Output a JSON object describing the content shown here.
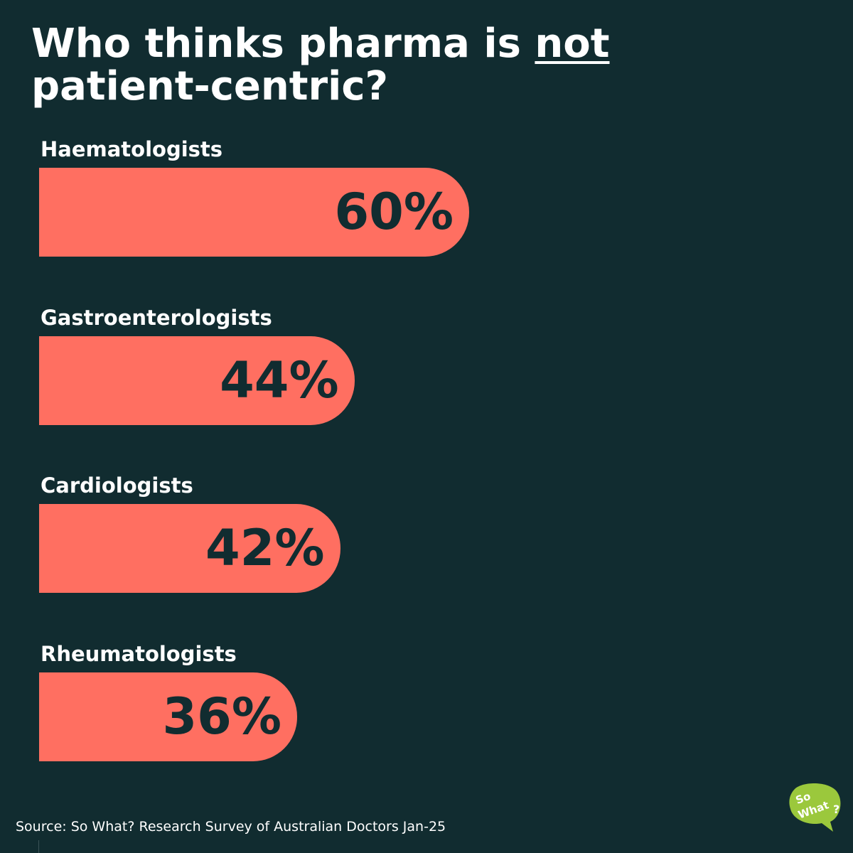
{
  "title": {
    "prefix": "Who thinks pharma is ",
    "emphasis": "not",
    "suffix": "patient-centric?"
  },
  "chart_data": {
    "type": "bar",
    "orientation": "horizontal",
    "categories": [
      "Haematologists",
      "Gastroenterologists",
      "Cardiologists",
      "Rheumatologists"
    ],
    "values": [
      60,
      44,
      42,
      36
    ],
    "value_labels": [
      "60%",
      "44%",
      "42%",
      "36%"
    ],
    "unit": "%",
    "title": "Who thinks pharma is not patient-centric?",
    "bar_color": "#ff6f61",
    "grid": false,
    "legend": "none"
  },
  "source": "Source: So What? Research Survey of Australian Doctors Jan-25",
  "logo": {
    "text_line1": "So",
    "text_line2": "What",
    "text_mark": "?",
    "color": "#9bc83c"
  },
  "colors": {
    "background": "#112c30",
    "bar": "#ff6f61",
    "text": "#ffffff",
    "value_text": "#112c30"
  }
}
